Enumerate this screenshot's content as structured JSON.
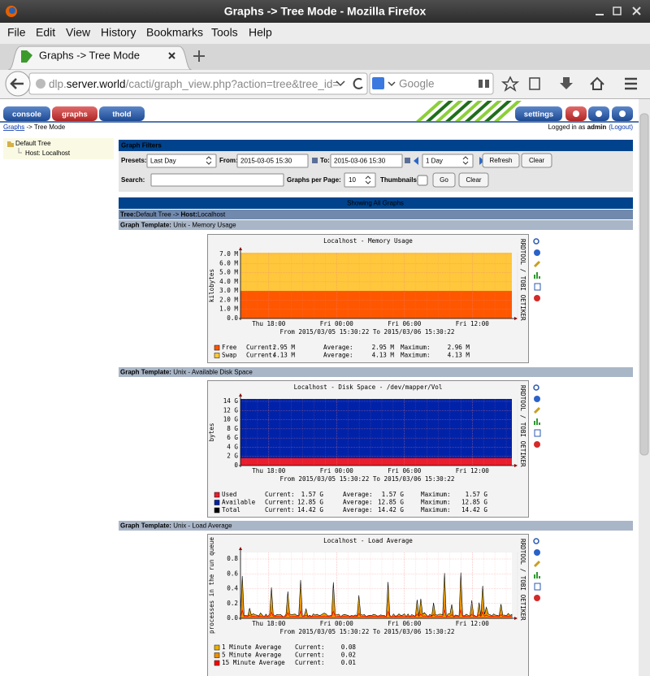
{
  "window": {
    "title": "Graphs -> Tree Mode - Mozilla Firefox"
  },
  "menu": [
    "File",
    "Edit",
    "View",
    "History",
    "Bookmarks",
    "Tools",
    "Help"
  ],
  "tab": {
    "title": "Graphs -> Tree Mode"
  },
  "url": {
    "sub": "dlp.",
    "domain": "server.world",
    "path": "/cacti/graph_view.php?action=tree&tree_id="
  },
  "search": {
    "placeholder": "Google"
  },
  "cacti": {
    "tabs": [
      "console",
      "graphs",
      "thold"
    ],
    "settings": "settings",
    "breadcrumb": {
      "link": "Graphs",
      "rest": " -> Tree Mode"
    },
    "login": {
      "prefix": "Logged in as ",
      "user": "admin",
      "logout": "(Logout)"
    }
  },
  "tree": {
    "root": "Default Tree",
    "host": "Host: Localhost"
  },
  "filters": {
    "title": "Graph Filters",
    "presets_label": "Presets:",
    "preset": "Last Day",
    "from_label": "From:",
    "from": "2015-03-05 15:30",
    "to_label": "To:",
    "to": "2015-03-06 15:30",
    "span": "1 Day",
    "refresh": "Refresh",
    "clear": "Clear",
    "search_label": "Search:",
    "per_page_label": "Graphs per Page:",
    "per_page": "10",
    "thumbnails_label": "Thumbnails:",
    "go": "Go"
  },
  "showing": "Showing All Graphs",
  "tree_bar": {
    "tree_label": "Tree:",
    "tree": "Default Tree -> ",
    "host_label": "Host:",
    "host": "Localhost"
  },
  "template_label": "Graph Template:",
  "watermark": "RRDTOOL / TOBI OETIKER",
  "graphs": [
    {
      "template": " Unix - Memory Usage",
      "title": "Localhost - Memory Usage",
      "y_label": "kilobytes",
      "yticks": [
        "0.0",
        "1.0 M",
        "2.0 M",
        "3.0 M",
        "4.0 M",
        "5.0 M",
        "6.0 M",
        "7.0 M"
      ],
      "xticks": [
        "Thu 18:00",
        "Fri 00:00",
        "Fri 06:00",
        "Fri 12:00"
      ],
      "range": "From 2015/03/05 15:30:22 To 2015/03/06 15:30:22",
      "columns": [
        "Current:",
        "Average:",
        "Maximum:"
      ],
      "legend": [
        {
          "name": "Free",
          "color": "#ff5700",
          "values": [
            "2.95 M",
            "2.95 M",
            "2.96 M"
          ]
        },
        {
          "name": "Swap",
          "color": "#ffc73b",
          "values": [
            "4.13 M",
            "4.13 M",
            "4.13 M"
          ]
        }
      ]
    },
    {
      "template": " Unix - Available Disk Space",
      "title": "Localhost - Disk Space - /dev/mapper/Vol",
      "y_label": "bytes",
      "yticks": [
        "0",
        "2 G",
        "4 G",
        "6 G",
        "8 G",
        "10 G",
        "12 G",
        "14 G"
      ],
      "xticks": [
        "Thu 18:00",
        "Fri 00:00",
        "Fri 06:00",
        "Fri 12:00"
      ],
      "range": "From 2015/03/05 15:30:22 To 2015/03/06 15:30:22",
      "columns": [
        "Current:",
        "Average:",
        "Maximum:"
      ],
      "legend": [
        {
          "name": "Used",
          "color": "#ea1d2c",
          "values": [
            "1.57 G",
            "1.57 G",
            "1.57 G"
          ]
        },
        {
          "name": "Available",
          "color": "#0022a8",
          "values": [
            "12.85 G",
            "12.85 G",
            "12.85 G"
          ]
        },
        {
          "name": "Total",
          "color": "#000000",
          "values": [
            "14.42 G",
            "14.42 G",
            "14.42 G"
          ]
        }
      ]
    },
    {
      "template": " Unix - Load Average",
      "title": "Localhost - Load Average",
      "y_label": "processes in the run queue",
      "yticks": [
        "0.0",
        "0.2",
        "0.4",
        "0.6",
        "0.8"
      ],
      "xticks": [
        "Thu 18:00",
        "Fri 00:00",
        "Fri 06:00",
        "Fri 12:00"
      ],
      "range": "From 2015/03/05 15:30:22 To 2015/03/06 15:30:22",
      "columns": [
        "Current:"
      ],
      "legend": [
        {
          "name": "1 Minute Average",
          "color": "#eaaf00",
          "values": [
            "0.08"
          ]
        },
        {
          "name": "5 Minute Average",
          "color": "#ea8f00",
          "values": [
            "0.02"
          ]
        },
        {
          "name": "15 Minute Average",
          "color": "#ff0000",
          "values": [
            "0.01"
          ]
        }
      ]
    }
  ]
}
